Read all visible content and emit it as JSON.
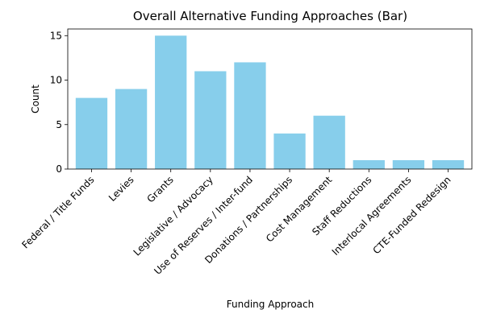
{
  "chart_data": {
    "type": "bar",
    "title": "Overall Alternative Funding Approaches (Bar)",
    "xlabel": "Funding Approach",
    "ylabel": "Count",
    "categories": [
      "Federal / Title Funds",
      "Levies",
      "Grants",
      "Legislative / Advocacy",
      "Use of Reserves / Inter-fund",
      "Donations / Partnerships",
      "Cost Management",
      "Staff Reductions",
      "Interlocal Agreements",
      "CTE-Funded Redesign"
    ],
    "values": [
      8,
      9,
      15,
      11,
      12,
      4,
      6,
      1,
      1,
      1
    ],
    "ylim": [
      0,
      15.75
    ],
    "yticks": [
      0,
      5,
      10,
      15
    ],
    "grid": false,
    "legend": "none",
    "bar_color": "#87ceeb"
  }
}
